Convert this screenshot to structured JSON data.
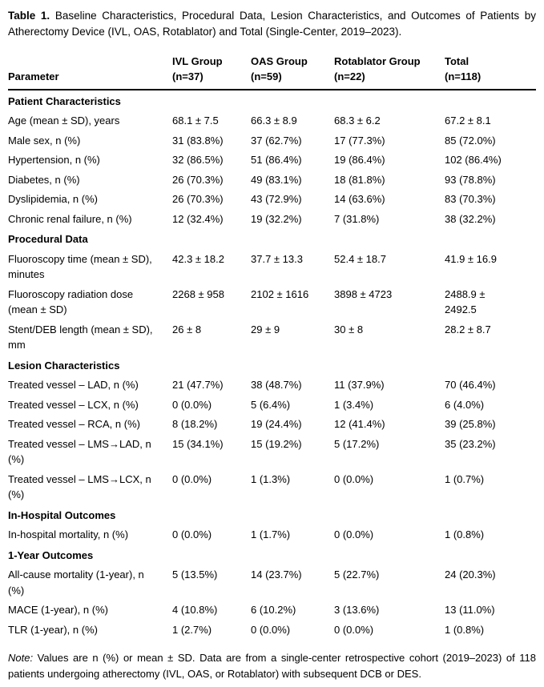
{
  "title": {
    "label": "Table 1.",
    "text": "Baseline Characteristics, Procedural Data, Lesion Characteristics, and Outcomes of Patients by Atherectomy Device (IVL, OAS, Rotablator) and Total (Single-Center, 2019–2023)."
  },
  "table": {
    "param_header": "Parameter",
    "group_headers": [
      {
        "name": "IVL Group",
        "n": "(n=37)"
      },
      {
        "name": "OAS Group",
        "n": "(n=59)"
      },
      {
        "name": "Rotablator Group",
        "n": "(n=22)"
      },
      {
        "name": "Total",
        "n": "(n=118)"
      }
    ],
    "sections": [
      {
        "header": "Patient Characteristics",
        "rows": [
          {
            "param": "Age (mean ± SD), years",
            "values": [
              "68.1 ± 7.5",
              "66.3 ± 8.9",
              "68.3 ± 6.2",
              "67.2 ± 8.1"
            ]
          },
          {
            "param": "Male sex, n (%)",
            "values": [
              "31 (83.8%)",
              "37 (62.7%)",
              "17 (77.3%)",
              "85 (72.0%)"
            ]
          },
          {
            "param": "Hypertension, n (%)",
            "values": [
              "32 (86.5%)",
              "51 (86.4%)",
              "19 (86.4%)",
              "102 (86.4%)"
            ]
          },
          {
            "param": "Diabetes, n (%)",
            "values": [
              "26 (70.3%)",
              "49 (83.1%)",
              "18 (81.8%)",
              "93 (78.8%)"
            ]
          },
          {
            "param": "Dyslipidemia, n (%)",
            "values": [
              "26 (70.3%)",
              "43 (72.9%)",
              "14 (63.6%)",
              "83 (70.3%)"
            ]
          },
          {
            "param": "Chronic renal failure, n (%)",
            "values": [
              "12 (32.4%)",
              "19 (32.2%)",
              "7 (31.8%)",
              "38 (32.2%)"
            ]
          }
        ]
      },
      {
        "header": "Procedural Data",
        "rows": [
          {
            "param": "Fluoroscopy time (mean ± SD), minutes",
            "values": [
              "42.3 ± 18.2",
              "37.7 ± 13.3",
              "52.4 ± 18.7",
              "41.9 ± 16.9"
            ]
          },
          {
            "param": "Fluoroscopy radiation dose (mean ± SD)",
            "values": [
              "2268 ± 958",
              "2102 ± 1616",
              "3898 ± 4723",
              "2488.9 ± 2492.5"
            ]
          },
          {
            "param": "Stent/DEB length (mean ± SD), mm",
            "values": [
              "26 ± 8",
              "29 ± 9",
              "30 ± 8",
              "28.2 ± 8.7"
            ]
          }
        ]
      },
      {
        "header": "Lesion Characteristics",
        "rows": [
          {
            "param": "Treated vessel – LAD, n (%)",
            "values": [
              "21 (47.7%)",
              "38 (48.7%)",
              "11 (37.9%)",
              "70 (46.4%)"
            ]
          },
          {
            "param": "Treated vessel – LCX, n (%)",
            "values": [
              "0 (0.0%)",
              "5 (6.4%)",
              "1 (3.4%)",
              "6 (4.0%)"
            ]
          },
          {
            "param": "Treated vessel – RCA, n (%)",
            "values": [
              "8 (18.2%)",
              "19 (24.4%)",
              "12 (41.4%)",
              "39 (25.8%)"
            ]
          },
          {
            "param": "Treated vessel – LMS→LAD, n (%)",
            "values": [
              "15 (34.1%)",
              "15 (19.2%)",
              "5 (17.2%)",
              "35 (23.2%)"
            ]
          },
          {
            "param": "Treated vessel – LMS→LCX, n (%)",
            "values": [
              "0 (0.0%)",
              "1 (1.3%)",
              "0 (0.0%)",
              "1 (0.7%)"
            ]
          }
        ]
      },
      {
        "header": "In-Hospital Outcomes",
        "rows": [
          {
            "param": "In-hospital mortality, n (%)",
            "values": [
              "0 (0.0%)",
              "1 (1.7%)",
              "0 (0.0%)",
              "1 (0.8%)"
            ]
          }
        ]
      },
      {
        "header": "1-Year Outcomes",
        "rows": [
          {
            "param": "All-cause mortality (1-year), n (%)",
            "values": [
              "5 (13.5%)",
              "14 (23.7%)",
              "5 (22.7%)",
              "24 (20.3%)"
            ]
          },
          {
            "param": "MACE (1-year), n (%)",
            "values": [
              "4 (10.8%)",
              "6 (10.2%)",
              "3 (13.6%)",
              "13 (11.0%)"
            ]
          },
          {
            "param": "TLR (1-year), n (%)",
            "values": [
              "1 (2.7%)",
              "0 (0.0%)",
              "0 (0.0%)",
              "1 (0.8%)"
            ]
          }
        ]
      }
    ]
  },
  "note": {
    "label": "Note:",
    "text": "Values are n (%) or mean ± SD. Data are from a single-center retrospective cohort (2019–2023) of 118 patients undergoing atherectomy (IVL, OAS, or Rotablator) with subsequent DCB or DES."
  }
}
